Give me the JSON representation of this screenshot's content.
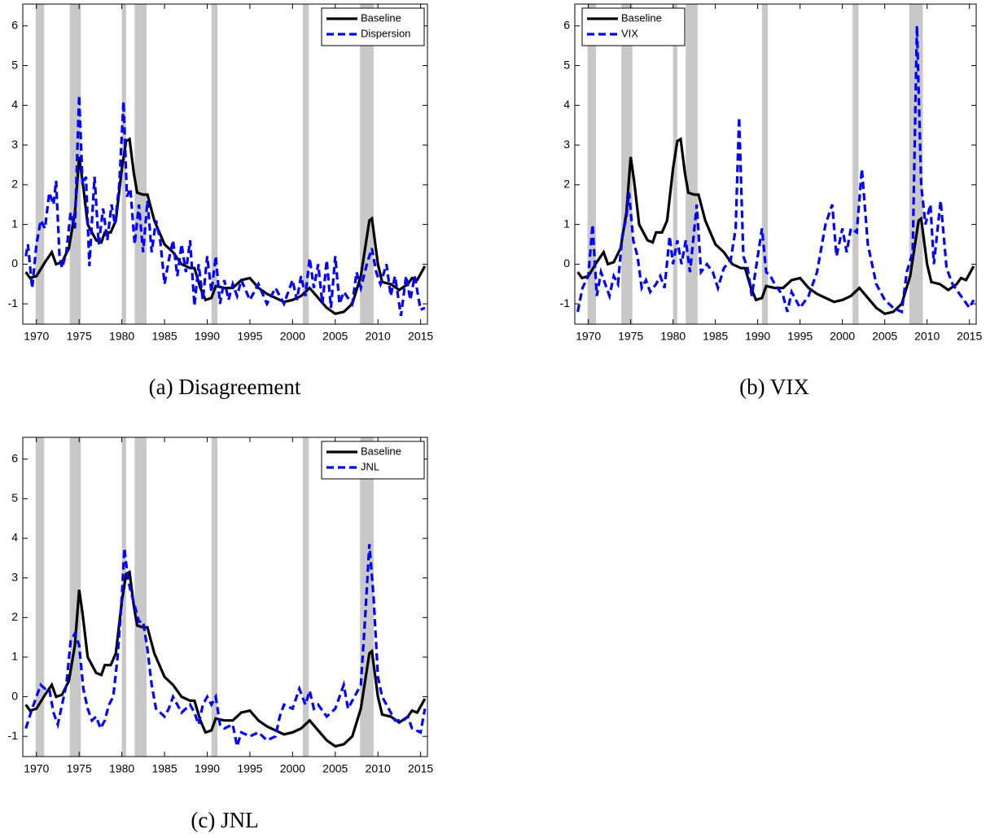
{
  "chart_data": [
    {
      "type": "line",
      "caption": "(a) Disagreement",
      "legend": "upper right",
      "xlim": [
        1968.4,
        2015.8
      ],
      "ylim": [
        -1.51,
        6.55
      ],
      "xticks": [
        1970,
        1975,
        1980,
        1985,
        1990,
        1995,
        2000,
        2005,
        2010,
        2015
      ],
      "yticks": [
        -1,
        0,
        1,
        2,
        3,
        4,
        5,
        6
      ],
      "recessions": [
        [
          1969.9,
          1970.9
        ],
        [
          1973.9,
          1975.2
        ],
        [
          1980.0,
          1980.5
        ],
        [
          1981.5,
          1982.9
        ],
        [
          1990.5,
          1991.2
        ],
        [
          2001.2,
          2001.9
        ],
        [
          2007.9,
          2009.5
        ]
      ],
      "series": [
        {
          "name": "Baseline",
          "color": "#000000",
          "linestyle": "solid",
          "x": [
            1968.75,
            1969.25,
            1970,
            1971,
            1971.8,
            1972.3,
            1973,
            1973.8,
            1974.5,
            1975.0,
            1975.4,
            1976,
            1977,
            1977.6,
            1978,
            1978.7,
            1979.3,
            1980,
            1980.5,
            1980.9,
            1981.4,
            1981.8,
            1982.5,
            1983,
            1983.8,
            1985,
            1986,
            1987,
            1988,
            1988.5,
            1989.2,
            1989.8,
            1990.5,
            1991,
            1992,
            1993,
            1994,
            1995,
            1996,
            1997,
            1998,
            1999,
            2000,
            2001,
            2002,
            2003,
            2004,
            2005,
            2006,
            2007,
            2008,
            2009,
            2009.3,
            2010,
            2010.5,
            2011.5,
            2012.5,
            2013.5,
            2014,
            2014.6,
            2015.5
          ],
          "values": [
            -0.2,
            -0.35,
            -0.3,
            0.05,
            0.3,
            0.0,
            0.05,
            0.4,
            1.3,
            2.7,
            2.1,
            1.0,
            0.6,
            0.55,
            0.8,
            0.8,
            1.1,
            2.4,
            3.1,
            3.15,
            2.3,
            1.8,
            1.75,
            1.75,
            1.1,
            0.5,
            0.3,
            0.0,
            -0.1,
            -0.1,
            -0.6,
            -0.9,
            -0.85,
            -0.55,
            -0.6,
            -0.6,
            -0.4,
            -0.35,
            -0.6,
            -0.75,
            -0.85,
            -0.95,
            -0.9,
            -0.8,
            -0.6,
            -0.85,
            -1.1,
            -1.25,
            -1.2,
            -1.0,
            -0.3,
            1.1,
            1.15,
            0.0,
            -0.45,
            -0.5,
            -0.65,
            -0.5,
            -0.35,
            -0.4,
            -0.05
          ]
        },
        {
          "name": "Dispersion",
          "color": "#0000ff",
          "linestyle": "dashed",
          "x": [
            1968.75,
            1969,
            1969.5,
            1970,
            1970.5,
            1971,
            1971.5,
            1972,
            1972.3,
            1972.7,
            1973,
            1973.5,
            1974,
            1974.5,
            1975,
            1975.4,
            1975.8,
            1976.2,
            1976.8,
            1977.3,
            1977.8,
            1978.3,
            1978.8,
            1979.2,
            1979.7,
            1980.2,
            1980.6,
            1981,
            1981.5,
            1982,
            1982.5,
            1983,
            1983.5,
            1984,
            1984.5,
            1985,
            1985.5,
            1986,
            1986.5,
            1987,
            1987.5,
            1988,
            1988.5,
            1989,
            1989.5,
            1990,
            1990.5,
            1991,
            1991.5,
            1992,
            1992.5,
            1993,
            1993.5,
            1994,
            1995,
            1996,
            1997,
            1998,
            1999,
            2000,
            2000.5,
            2001,
            2001.5,
            2002,
            2002.5,
            2003,
            2003.5,
            2004,
            2004.5,
            2005,
            2005.5,
            2006,
            2007,
            2007.5,
            2008,
            2008.7,
            2009.3,
            2009.8,
            2010.3,
            2011,
            2011.5,
            2012,
            2012.7,
            2013.3,
            2013.8,
            2014.3,
            2015,
            2015.5
          ],
          "values": [
            0.2,
            0.5,
            -0.6,
            0.5,
            1.1,
            0.9,
            1.8,
            1.5,
            2.1,
            0.2,
            -0.1,
            0.3,
            1.3,
            0.9,
            4.25,
            2.0,
            2.2,
            -0.05,
            2.2,
            0.5,
            1.4,
            0.6,
            1.5,
            1.0,
            2.0,
            4.1,
            1.7,
            1.9,
            0.5,
            1.5,
            0.3,
            1.6,
            0.3,
            1.1,
            0.6,
            -0.5,
            0.1,
            0.6,
            -0.3,
            0.5,
            -0.2,
            0.6,
            -1.05,
            0.0,
            -0.9,
            0.2,
            -0.7,
            0.2,
            -1.0,
            -0.4,
            -0.9,
            -0.5,
            -0.8,
            -0.4,
            -0.9,
            -0.5,
            -1.0,
            -0.6,
            -1.0,
            -0.4,
            -0.9,
            -0.3,
            -0.8,
            0.15,
            -0.6,
            0.0,
            -1.0,
            0.1,
            -1.1,
            0.2,
            -1.0,
            -0.7,
            -1.0,
            -0.2,
            -0.6,
            0.0,
            0.4,
            -0.2,
            -0.5,
            0.0,
            -0.8,
            -0.3,
            -1.3,
            -0.3,
            -0.9,
            -0.3,
            -1.15,
            -1.1
          ]
        }
      ]
    },
    {
      "type": "line",
      "caption": "(b) VIX",
      "legend": "upper left",
      "xlim": [
        1968.4,
        2015.8
      ],
      "ylim": [
        -1.51,
        6.55
      ],
      "xticks": [
        1970,
        1975,
        1980,
        1985,
        1990,
        1995,
        2000,
        2005,
        2010,
        2015
      ],
      "yticks": [
        -1,
        0,
        1,
        2,
        3,
        4,
        5,
        6
      ],
      "recessions": [
        [
          1969.9,
          1970.9
        ],
        [
          1973.9,
          1975.2
        ],
        [
          1980.0,
          1980.5
        ],
        [
          1981.5,
          1982.9
        ],
        [
          1990.5,
          1991.2
        ],
        [
          2001.2,
          2001.9
        ],
        [
          2007.9,
          2009.5
        ]
      ],
      "series": [
        {
          "name": "Baseline",
          "color": "#000000",
          "linestyle": "solid",
          "x": [
            1968.75,
            1969.25,
            1970,
            1971,
            1971.8,
            1972.3,
            1973,
            1973.8,
            1974.5,
            1975.0,
            1975.4,
            1976,
            1977,
            1977.6,
            1978,
            1978.7,
            1979.3,
            1980,
            1980.5,
            1980.9,
            1981.4,
            1981.8,
            1982.5,
            1983,
            1983.8,
            1985,
            1986,
            1987,
            1988,
            1988.5,
            1989.2,
            1989.8,
            1990.5,
            1991,
            1992,
            1993,
            1994,
            1995,
            1996,
            1997,
            1998,
            1999,
            2000,
            2001,
            2002,
            2003,
            2004,
            2005,
            2006,
            2007,
            2008,
            2009,
            2009.3,
            2010,
            2010.5,
            2011.5,
            2012.5,
            2013.5,
            2014,
            2014.6,
            2015.5
          ],
          "values": [
            -0.2,
            -0.35,
            -0.3,
            0.05,
            0.3,
            0.0,
            0.05,
            0.4,
            1.3,
            2.7,
            2.1,
            1.0,
            0.6,
            0.55,
            0.8,
            0.8,
            1.1,
            2.4,
            3.1,
            3.15,
            2.3,
            1.8,
            1.75,
            1.75,
            1.1,
            0.5,
            0.3,
            0.0,
            -0.1,
            -0.1,
            -0.6,
            -0.9,
            -0.85,
            -0.55,
            -0.6,
            -0.6,
            -0.4,
            -0.35,
            -0.6,
            -0.75,
            -0.85,
            -0.95,
            -0.9,
            -0.8,
            -0.6,
            -0.85,
            -1.1,
            -1.25,
            -1.2,
            -1.0,
            -0.3,
            1.1,
            1.15,
            0.0,
            -0.45,
            -0.5,
            -0.65,
            -0.5,
            -0.35,
            -0.4,
            -0.05
          ]
        },
        {
          "name": "VIX",
          "color": "#0000ff",
          "linestyle": "dashed",
          "x": [
            1968.75,
            1969.3,
            1970,
            1970.5,
            1971,
            1971.5,
            1972,
            1972.5,
            1973,
            1973.5,
            1974,
            1974.5,
            1974.8,
            1975.3,
            1975.8,
            1976.3,
            1976.8,
            1977.3,
            1978,
            1978.5,
            1979,
            1979.6,
            1980,
            1980.5,
            1981,
            1981.5,
            1982,
            1982.8,
            1983.3,
            1984,
            1984.7,
            1985.3,
            1986,
            1986.8,
            1987.4,
            1987.8,
            1988.3,
            1988.8,
            1989.3,
            1990,
            1990.5,
            1991,
            1991.5,
            1992,
            1993,
            1993.5,
            1994,
            1995,
            1996,
            1997,
            1998,
            1998.8,
            1999.3,
            2000,
            2000.5,
            2001,
            2001.7,
            2002.3,
            2003,
            2004,
            2005,
            2006,
            2007,
            2007.6,
            2008.3,
            2008.8,
            2009.3,
            2009.8,
            2010.4,
            2010.8,
            2011.6,
            2012.3,
            2013,
            2014,
            2015,
            2015.5
          ],
          "values": [
            -1.2,
            -0.6,
            -0.3,
            1.0,
            -0.8,
            -0.2,
            -0.5,
            -0.8,
            -0.3,
            -0.5,
            0.7,
            1.2,
            1.8,
            0.6,
            0.2,
            -0.6,
            -0.4,
            -0.7,
            -0.5,
            -0.3,
            -0.6,
            0.7,
            0.0,
            0.6,
            0.0,
            0.6,
            -0.2,
            1.5,
            -0.2,
            0.0,
            -0.2,
            -0.6,
            -0.1,
            0.1,
            0.9,
            3.7,
            0.2,
            -0.1,
            -0.8,
            0.2,
            0.9,
            -0.2,
            -0.3,
            -0.5,
            -0.8,
            -1.2,
            -0.7,
            -1.1,
            -0.8,
            -0.2,
            1.0,
            1.5,
            0.2,
            0.9,
            0.3,
            0.9,
            0.8,
            2.4,
            0.5,
            -0.5,
            -0.9,
            -1.1,
            -1.2,
            -0.2,
            0.3,
            6.0,
            2.0,
            1.0,
            1.5,
            0.0,
            1.6,
            -0.1,
            -0.5,
            -0.8,
            -1.1,
            -0.9
          ]
        }
      ]
    },
    {
      "type": "line",
      "caption": "(c) JNL",
      "legend": "upper right",
      "xlim": [
        1968.4,
        2015.8
      ],
      "ylim": [
        -1.51,
        6.55
      ],
      "xticks": [
        1970,
        1975,
        1980,
        1985,
        1990,
        1995,
        2000,
        2005,
        2010,
        2015
      ],
      "yticks": [
        -1,
        0,
        1,
        2,
        3,
        4,
        5,
        6
      ],
      "recessions": [
        [
          1969.9,
          1970.9
        ],
        [
          1973.9,
          1975.2
        ],
        [
          1980.0,
          1980.5
        ],
        [
          1981.5,
          1982.9
        ],
        [
          1990.5,
          1991.2
        ],
        [
          2001.2,
          2001.9
        ],
        [
          2007.9,
          2009.5
        ]
      ],
      "series": [
        {
          "name": "Baseline",
          "color": "#000000",
          "linestyle": "solid",
          "x": [
            1968.75,
            1969.25,
            1970,
            1971,
            1971.8,
            1972.3,
            1973,
            1973.8,
            1974.5,
            1975.0,
            1975.4,
            1976,
            1977,
            1977.6,
            1978,
            1978.7,
            1979.3,
            1980,
            1980.5,
            1980.9,
            1981.4,
            1981.8,
            1982.5,
            1983,
            1983.8,
            1985,
            1986,
            1987,
            1988,
            1988.5,
            1989.2,
            1989.8,
            1990.5,
            1991,
            1992,
            1993,
            1994,
            1995,
            1996,
            1997,
            1998,
            1999,
            2000,
            2001,
            2002,
            2003,
            2004,
            2005,
            2006,
            2007,
            2008,
            2009,
            2009.3,
            2010,
            2010.5,
            2011.5,
            2012.5,
            2013.5,
            2014,
            2014.6,
            2015.5
          ],
          "values": [
            -0.2,
            -0.35,
            -0.3,
            0.05,
            0.3,
            0.0,
            0.05,
            0.4,
            1.3,
            2.7,
            2.1,
            1.0,
            0.6,
            0.55,
            0.8,
            0.8,
            1.1,
            2.4,
            3.1,
            3.15,
            2.3,
            1.8,
            1.75,
            1.75,
            1.1,
            0.5,
            0.3,
            0.0,
            -0.1,
            -0.1,
            -0.6,
            -0.9,
            -0.85,
            -0.55,
            -0.6,
            -0.6,
            -0.4,
            -0.35,
            -0.6,
            -0.75,
            -0.85,
            -0.95,
            -0.9,
            -0.8,
            -0.6,
            -0.85,
            -1.1,
            -1.25,
            -1.2,
            -1.0,
            -0.3,
            1.1,
            1.15,
            0.0,
            -0.45,
            -0.5,
            -0.65,
            -0.5,
            -0.35,
            -0.4,
            -0.05
          ]
        },
        {
          "name": "JNL",
          "color": "#0000ff",
          "linestyle": "dashed",
          "x": [
            1968.75,
            1969.5,
            1970.5,
            1971,
            1971.5,
            1972,
            1972.5,
            1973,
            1973.5,
            1974,
            1974.5,
            1975,
            1975.5,
            1976,
            1976.5,
            1977,
            1977.5,
            1978,
            1978.5,
            1979,
            1979.5,
            1980,
            1980.3,
            1980.7,
            1981,
            1981.5,
            1982,
            1982.5,
            1983,
            1983.5,
            1984,
            1984.5,
            1985,
            1985.5,
            1986,
            1986.5,
            1987,
            1988,
            1988.5,
            1989,
            1989.5,
            1990,
            1990.5,
            1991,
            1991.5,
            1992,
            1993,
            1993.5,
            1994,
            1995,
            1996,
            1997,
            1998,
            1998.5,
            1999,
            2000,
            2000.8,
            2001.5,
            2002,
            2002.5,
            2003,
            2004,
            2005,
            2006,
            2006.5,
            2007,
            2007.5,
            2008,
            2008.5,
            2009,
            2009.5,
            2010,
            2010.5,
            2011,
            2012,
            2013,
            2013.5,
            2014,
            2015,
            2015.5
          ],
          "values": [
            -0.8,
            -0.3,
            0.3,
            0.2,
            0.2,
            -0.4,
            -0.7,
            -0.2,
            0.3,
            1.4,
            1.6,
            1.3,
            0.2,
            -0.3,
            -0.6,
            -0.5,
            -0.8,
            -0.6,
            -0.2,
            0.0,
            1.0,
            2.5,
            3.75,
            3.0,
            2.7,
            2.3,
            1.9,
            1.9,
            1.2,
            0.3,
            -0.3,
            -0.4,
            -0.5,
            -0.3,
            0.0,
            -0.2,
            -0.4,
            -0.2,
            -0.4,
            -0.7,
            -0.2,
            0.0,
            -0.2,
            0.0,
            -0.7,
            -0.8,
            -0.7,
            -1.25,
            -0.9,
            -1.0,
            -0.9,
            -1.1,
            -1.0,
            -0.5,
            -0.2,
            -0.3,
            0.2,
            -0.2,
            0.15,
            -0.3,
            -0.2,
            -0.5,
            -0.3,
            0.3,
            -0.3,
            -0.1,
            0.1,
            0.3,
            2.0,
            3.85,
            2.5,
            0.5,
            0.0,
            -0.2,
            -0.6,
            -0.6,
            -0.5,
            -0.8,
            -0.9,
            -0.3
          ]
        }
      ]
    }
  ]
}
